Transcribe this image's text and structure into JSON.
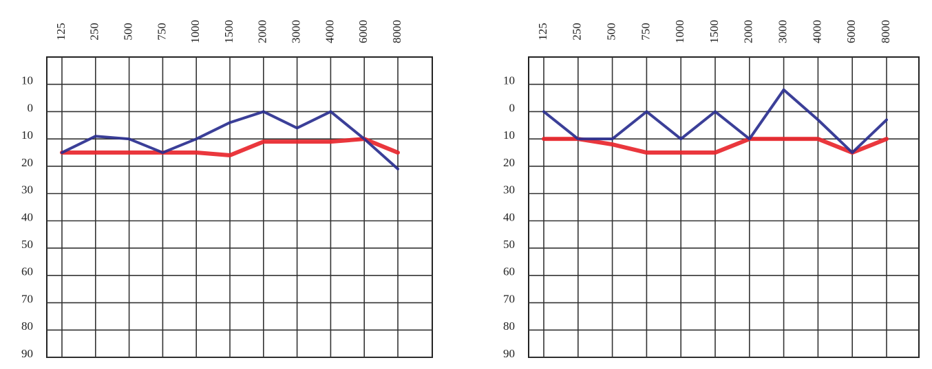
{
  "chart_data": [
    {
      "type": "line",
      "categories": [
        "125",
        "250",
        "500",
        "750",
        "1000",
        "1500",
        "2000",
        "3000",
        "4000",
        "6000",
        "8000"
      ],
      "series": [
        {
          "color": "#2a2f8f",
          "values": [
            15,
            9,
            10,
            15,
            10,
            4,
            0,
            6,
            0,
            10,
            21
          ]
        },
        {
          "color": "#e8262c",
          "values": [
            15,
            15,
            15,
            15,
            15,
            16,
            11,
            11,
            11,
            10,
            15
          ]
        }
      ],
      "ylim": [
        -20,
        90
      ],
      "yticks": [
        {
          "value": -10,
          "label": "10"
        },
        0,
        10,
        20,
        30,
        40,
        50,
        60,
        70,
        80,
        90
      ],
      "grid": true
    },
    {
      "type": "line",
      "categories": [
        "125",
        "250",
        "500",
        "750",
        "1000",
        "1500",
        "2000",
        "3000",
        "4000",
        "6000",
        "8000"
      ],
      "series": [
        {
          "color": "#2a2f8f",
          "values": [
            0,
            10,
            10,
            0,
            10,
            0,
            10,
            -8,
            3,
            15,
            3
          ]
        },
        {
          "color": "#e8262c",
          "values": [
            10,
            10,
            12,
            15,
            15,
            15,
            10,
            10,
            10,
            15,
            10
          ]
        }
      ],
      "ylim": [
        -20,
        90
      ],
      "yticks": [
        {
          "value": -10,
          "label": "10"
        },
        0,
        10,
        20,
        30,
        40,
        50,
        60,
        70,
        80,
        90
      ],
      "grid": true
    }
  ]
}
